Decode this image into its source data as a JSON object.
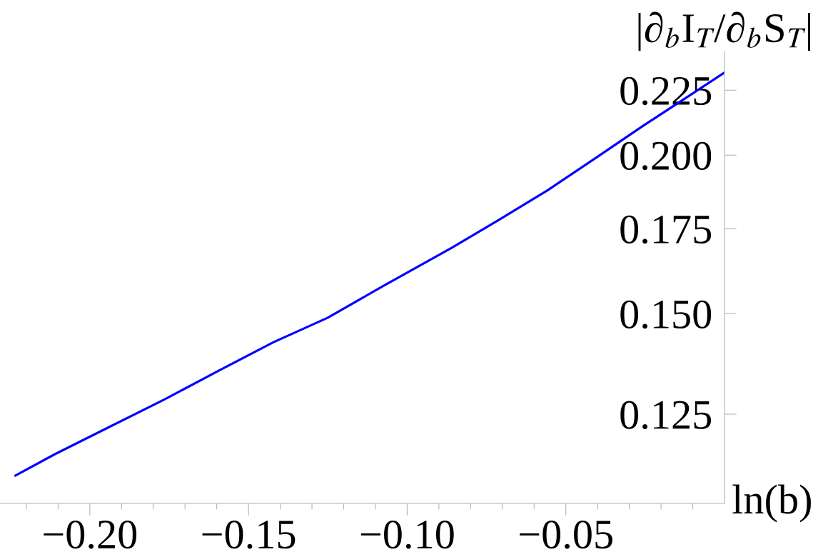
{
  "chart_data": {
    "type": "line",
    "xlabel": "ln(b)",
    "ylabel": "|∂$_{b}$I$_{T}$/∂$_{b}$S$_{T}$|",
    "log": "y",
    "grid": false,
    "legend": false,
    "marker": "none",
    "line_style": "solid",
    "xlim": [
      -0.2283,
      0
    ],
    "ylim": [
      0.1063,
      0.2414
    ],
    "xticks": [
      {
        "value": -0.22,
        "label": null
      },
      {
        "value": -0.21,
        "label": null
      },
      {
        "value": -0.2,
        "label": "−0.20"
      },
      {
        "value": -0.19,
        "label": null
      },
      {
        "value": -0.18,
        "label": null
      },
      {
        "value": -0.17,
        "label": null
      },
      {
        "value": -0.16,
        "label": null
      },
      {
        "value": -0.15,
        "label": "−0.15"
      },
      {
        "value": -0.14,
        "label": null
      },
      {
        "value": -0.13,
        "label": null
      },
      {
        "value": -0.12,
        "label": null
      },
      {
        "value": -0.11,
        "label": null
      },
      {
        "value": -0.1,
        "label": "−0.10"
      },
      {
        "value": -0.09,
        "label": null
      },
      {
        "value": -0.08,
        "label": null
      },
      {
        "value": -0.07,
        "label": null
      },
      {
        "value": -0.06,
        "label": null
      },
      {
        "value": -0.05,
        "label": "−0.05"
      },
      {
        "value": -0.04,
        "label": null
      },
      {
        "value": -0.03,
        "label": null
      },
      {
        "value": -0.02,
        "label": null
      },
      {
        "value": -0.01,
        "label": null
      }
    ],
    "yticks": [
      {
        "value": 0.125,
        "label": "0.125"
      },
      {
        "value": 0.15,
        "label": "0.150"
      },
      {
        "value": 0.175,
        "label": "0.175"
      },
      {
        "value": 0.2,
        "label": "0.200"
      },
      {
        "value": 0.225,
        "label": "0.225"
      }
    ],
    "series": [
      {
        "color": "#0000ff",
        "x": [
          -0.2235,
          -0.2111,
          -0.1939,
          -0.1767,
          -0.1595,
          -0.1422,
          -0.125,
          -0.1078,
          -0.0858,
          -0.0708,
          -0.0558,
          -0.0408,
          -0.0258,
          -0.0108,
          0
        ],
        "values": [
          0.1118,
          0.1162,
          0.1221,
          0.1283,
          0.1352,
          0.1424,
          0.1489,
          0.1576,
          0.1691,
          0.178,
          0.1876,
          0.1988,
          0.2108,
          0.223,
          0.2323
        ]
      }
    ]
  }
}
